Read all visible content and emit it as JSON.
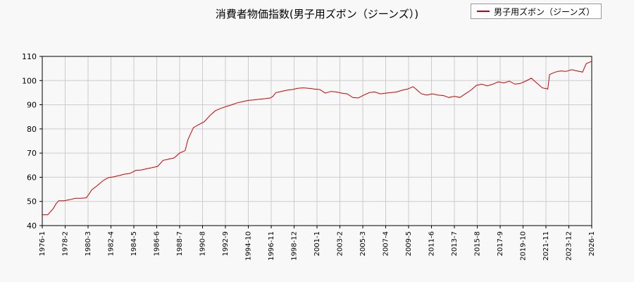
{
  "chart_data": {
    "type": "line",
    "title": "消費者物価指数(男子用ズボン（ジーンズ）)",
    "xlabel": "",
    "ylabel": "",
    "x_start": "1976-1",
    "x_end": "2026-1",
    "ylim": [
      40,
      110
    ],
    "y_ticks": [
      40,
      50,
      60,
      70,
      80,
      90,
      100,
      110
    ],
    "x_tick_labels": [
      "1976-1",
      "1978-2",
      "1980-3",
      "1982-4",
      "1984-5",
      "1986-6",
      "1988-7",
      "1990-8",
      "1992-9",
      "1994-10",
      "1996-11",
      "1998-12",
      "2001-1",
      "2003-2",
      "2005-3",
      "2007-4",
      "2009-5",
      "2011-6",
      "2013-7",
      "2015-8",
      "2017-9",
      "2019-10",
      "2021-11",
      "2023-12",
      "2026-1"
    ],
    "grid": true,
    "legend_position": "top-right",
    "series": [
      {
        "name": "男子用ズボン（ジーンズ）",
        "color": "#cc0000",
        "points": [
          [
            "1976-1",
            44.5
          ],
          [
            "1976-7",
            44.5
          ],
          [
            "1977-1",
            47.0
          ],
          [
            "1977-4",
            49.0
          ],
          [
            "1977-7",
            50.3
          ],
          [
            "1978-1",
            50.3
          ],
          [
            "1978-7",
            50.7
          ],
          [
            "1979-1",
            51.3
          ],
          [
            "1979-7",
            51.3
          ],
          [
            "1980-1",
            51.5
          ],
          [
            "1980-4",
            53.0
          ],
          [
            "1980-7",
            54.8
          ],
          [
            "1981-1",
            56.5
          ],
          [
            "1981-7",
            58.5
          ],
          [
            "1982-1",
            59.8
          ],
          [
            "1982-7",
            60.2
          ],
          [
            "1983-1",
            60.7
          ],
          [
            "1983-7",
            61.3
          ],
          [
            "1984-1",
            61.6
          ],
          [
            "1984-7",
            62.8
          ],
          [
            "1985-1",
            63.0
          ],
          [
            "1985-7",
            63.5
          ],
          [
            "1986-1",
            64.0
          ],
          [
            "1986-7",
            64.5
          ],
          [
            "1987-1",
            67.0
          ],
          [
            "1987-7",
            67.5
          ],
          [
            "1988-1",
            68.0
          ],
          [
            "1988-7",
            70.0
          ],
          [
            "1989-1",
            71.0
          ],
          [
            "1989-4",
            75.5
          ],
          [
            "1989-10",
            80.5
          ],
          [
            "1990-4",
            81.8
          ],
          [
            "1990-10",
            83.0
          ],
          [
            "1991-4",
            85.5
          ],
          [
            "1991-10",
            87.5
          ],
          [
            "1992-4",
            88.5
          ],
          [
            "1992-10",
            89.3
          ],
          [
            "1993-4",
            90.0
          ],
          [
            "1993-10",
            90.8
          ],
          [
            "1994-4",
            91.3
          ],
          [
            "1994-10",
            91.8
          ],
          [
            "1995-4",
            92.0
          ],
          [
            "1995-10",
            92.3
          ],
          [
            "1996-4",
            92.5
          ],
          [
            "1996-10",
            92.8
          ],
          [
            "1997-1",
            93.5
          ],
          [
            "1997-4",
            95.0
          ],
          [
            "1997-10",
            95.5
          ],
          [
            "1998-4",
            96.0
          ],
          [
            "1998-10",
            96.3
          ],
          [
            "1999-4",
            96.8
          ],
          [
            "1999-10",
            97.0
          ],
          [
            "2000-4",
            96.8
          ],
          [
            "2000-10",
            96.5
          ],
          [
            "2001-4",
            96.3
          ],
          [
            "2001-10",
            94.8
          ],
          [
            "2002-4",
            95.5
          ],
          [
            "2002-10",
            95.3
          ],
          [
            "2003-4",
            94.8
          ],
          [
            "2003-10",
            94.5
          ],
          [
            "2004-4",
            93.0
          ],
          [
            "2004-10",
            92.8
          ],
          [
            "2005-4",
            94.0
          ],
          [
            "2005-10",
            95.0
          ],
          [
            "2006-4",
            95.3
          ],
          [
            "2006-10",
            94.5
          ],
          [
            "2007-4",
            94.8
          ],
          [
            "2007-10",
            95.0
          ],
          [
            "2008-4",
            95.3
          ],
          [
            "2008-10",
            96.0
          ],
          [
            "2009-4",
            96.5
          ],
          [
            "2009-10",
            97.5
          ],
          [
            "2010-1",
            96.5
          ],
          [
            "2010-7",
            94.5
          ],
          [
            "2011-1",
            94.0
          ],
          [
            "2011-7",
            94.5
          ],
          [
            "2012-1",
            94.0
          ],
          [
            "2012-7",
            93.8
          ],
          [
            "2013-1",
            93.0
          ],
          [
            "2013-7",
            93.5
          ],
          [
            "2014-1",
            93.0
          ],
          [
            "2014-7",
            94.5
          ],
          [
            "2015-1",
            96.0
          ],
          [
            "2015-7",
            98.0
          ],
          [
            "2016-1",
            98.5
          ],
          [
            "2016-7",
            97.8
          ],
          [
            "2017-1",
            98.5
          ],
          [
            "2017-7",
            99.5
          ],
          [
            "2018-1",
            99.0
          ],
          [
            "2018-7",
            99.8
          ],
          [
            "2019-1",
            98.5
          ],
          [
            "2019-7",
            98.8
          ],
          [
            "2020-1",
            99.8
          ],
          [
            "2020-7",
            101.0
          ],
          [
            "2021-1",
            99.0
          ],
          [
            "2021-7",
            97.0
          ],
          [
            "2022-1",
            96.5
          ],
          [
            "2022-3",
            102.5
          ],
          [
            "2022-9",
            103.5
          ],
          [
            "2023-3",
            104.0
          ],
          [
            "2023-9",
            103.8
          ],
          [
            "2024-3",
            104.5
          ],
          [
            "2024-9",
            104.0
          ],
          [
            "2025-3",
            103.5
          ],
          [
            "2025-7",
            107.0
          ],
          [
            "2026-1",
            108.0
          ]
        ]
      }
    ]
  }
}
